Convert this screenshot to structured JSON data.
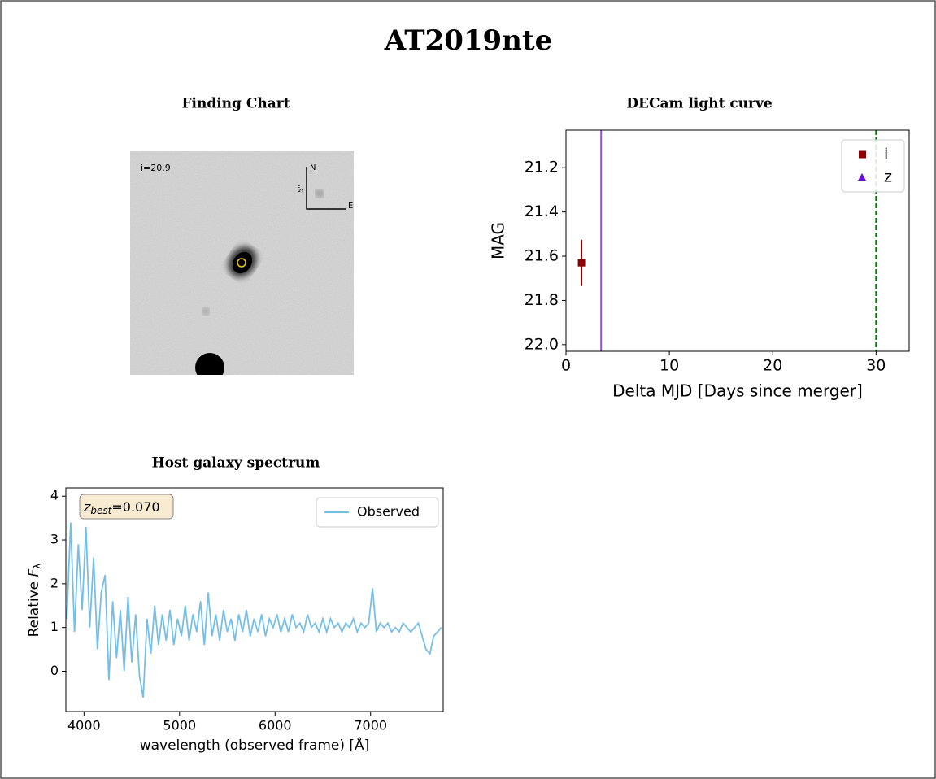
{
  "title": "AT2019nte",
  "finding_chart": {
    "title": "Finding Chart",
    "magnitude_label": "i=20.9",
    "compass": {
      "north": "N",
      "east": "E",
      "scale": "5''"
    }
  },
  "chart_data": [
    {
      "type": "scatter",
      "title": "DECam light curve",
      "x_label": "Delta MJD [Days since merger]",
      "y_label": "MAG",
      "xlim": [
        0,
        33.2
      ],
      "ylim": [
        21.03,
        22.03
      ],
      "invert_y": true,
      "xticks": [
        0,
        10,
        20,
        30
      ],
      "yticks": [
        21.2,
        21.4,
        21.6,
        21.8,
        {
          "value": 22,
          "label": "22.0"
        }
      ],
      "series": [
        {
          "name": "i",
          "color": "#8b0000",
          "marker": "square",
          "x": [
            1.5
          ],
          "values": [
            21.63
          ],
          "errors": [
            0.105
          ]
        },
        {
          "name": "z",
          "color": "#6a0dd0",
          "marker": "triangle",
          "x": [],
          "values": [],
          "errors": []
        }
      ],
      "vlines": [
        {
          "x": 3.4,
          "color": "#9b4fc9",
          "style": "solid"
        },
        {
          "x": 30,
          "color": "#008000",
          "style": "dashed"
        }
      ],
      "legend": "upper right",
      "grid": false
    },
    {
      "type": "line",
      "title": "Host galaxy spectrum",
      "x_label": "wavelength (observed frame) [Å]",
      "y_label": [
        "Relative ",
        "F",
        "λ"
      ],
      "annotation": [
        "z",
        "best",
        "=0.070"
      ],
      "xlim": [
        3810,
        7760
      ],
      "ylim": [
        -0.92,
        4.19
      ],
      "xticks": [
        4000,
        5000,
        6000,
        7000
      ],
      "yticks": [
        0,
        1,
        2,
        3,
        4
      ],
      "legend": "upper right",
      "grid": false,
      "series": [
        {
          "name": "Observed",
          "color": "#74bfe8",
          "x": [
            3820,
            3860,
            3900,
            3940,
            3980,
            4020,
            4060,
            4100,
            4140,
            4180,
            4220,
            4260,
            4300,
            4340,
            4380,
            4420,
            4460,
            4500,
            4540,
            4580,
            4620,
            4660,
            4700,
            4740,
            4780,
            4820,
            4860,
            4900,
            4940,
            4980,
            5020,
            5060,
            5100,
            5140,
            5180,
            5220,
            5260,
            5300,
            5340,
            5380,
            5420,
            5460,
            5500,
            5540,
            5580,
            5620,
            5660,
            5700,
            5740,
            5780,
            5820,
            5860,
            5900,
            5940,
            5980,
            6020,
            6060,
            6100,
            6140,
            6180,
            6220,
            6260,
            6300,
            6340,
            6380,
            6420,
            6460,
            6500,
            6540,
            6580,
            6620,
            6660,
            6700,
            6740,
            6780,
            6820,
            6860,
            6900,
            6940,
            6980,
            7020,
            7060,
            7100,
            7140,
            7180,
            7220,
            7260,
            7300,
            7340,
            7380,
            7420,
            7460,
            7500,
            7540,
            7580,
            7620,
            7660,
            7700,
            7740
          ],
          "values": [
            1.2,
            3.4,
            0.9,
            2.9,
            1.4,
            3.3,
            1.0,
            2.6,
            0.5,
            1.8,
            2.2,
            -0.2,
            1.6,
            0.3,
            1.4,
            0.0,
            1.7,
            0.2,
            1.3,
            -0.1,
            -0.6,
            1.2,
            0.4,
            1.5,
            0.6,
            1.3,
            0.7,
            1.4,
            0.6,
            1.2,
            0.8,
            1.5,
            0.7,
            1.3,
            0.9,
            1.6,
            0.6,
            1.8,
            0.8,
            1.3,
            0.7,
            1.4,
            0.9,
            1.2,
            0.7,
            1.3,
            0.9,
            1.4,
            0.8,
            1.2,
            0.9,
            1.3,
            0.8,
            1.2,
            1.0,
            1.3,
            0.9,
            1.2,
            0.9,
            1.3,
            1.0,
            1.1,
            0.9,
            1.3,
            1.0,
            1.1,
            0.9,
            1.2,
            0.9,
            1.2,
            1.0,
            1.1,
            0.9,
            1.1,
            1.0,
            1.2,
            0.9,
            1.1,
            1.0,
            1.1,
            1.9,
            0.9,
            1.1,
            1.0,
            1.1,
            0.9,
            1.0,
            0.9,
            1.1,
            1.0,
            0.9,
            1.0,
            1.1,
            0.8,
            0.5,
            0.4,
            0.8,
            0.9,
            1.0
          ]
        }
      ]
    }
  ]
}
